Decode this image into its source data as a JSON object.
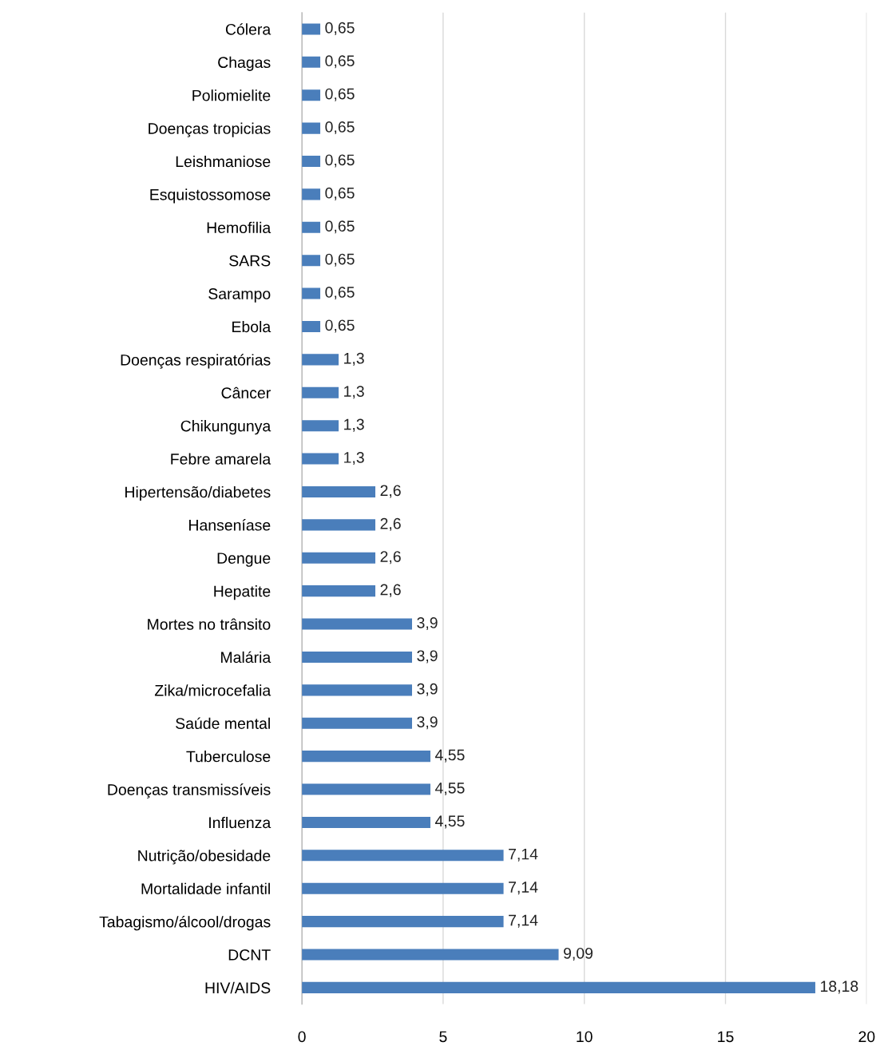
{
  "chart_data": {
    "type": "bar",
    "orientation": "horizontal",
    "categories": [
      "Cólera",
      "Chagas",
      "Poliomielite",
      "Doenças tropicias",
      "Leishmaniose",
      "Esquistossomose",
      "Hemofilia",
      "SARS",
      "Sarampo",
      "Ebola",
      "Doenças respiratórias",
      "Câncer",
      "Chikungunya",
      "Febre amarela",
      "Hipertensão/diabetes",
      "Hanseníase",
      "Dengue",
      "Hepatite",
      "Mortes no trânsito",
      "Malária",
      "Zika/microcefalia",
      "Saúde mental",
      "Tuberculose",
      "Doenças transmissíveis",
      "Influenza",
      "Nutrição/obesidade",
      "Mortalidade infantil",
      "Tabagismo/álcool/drogas",
      "DCNT",
      "HIV/AIDS"
    ],
    "values": [
      0.65,
      0.65,
      0.65,
      0.65,
      0.65,
      0.65,
      0.65,
      0.65,
      0.65,
      0.65,
      1.3,
      1.3,
      1.3,
      1.3,
      2.6,
      2.6,
      2.6,
      2.6,
      3.9,
      3.9,
      3.9,
      3.9,
      4.55,
      4.55,
      4.55,
      7.14,
      7.14,
      7.14,
      9.09,
      18.18
    ],
    "value_labels": [
      "0,65",
      "0,65",
      "0,65",
      "0,65",
      "0,65",
      "0,65",
      "0,65",
      "0,65",
      "0,65",
      "0,65",
      "1,3",
      "1,3",
      "1,3",
      "1,3",
      "2,6",
      "2,6",
      "2,6",
      "2,6",
      "3,9",
      "3,9",
      "3,9",
      "3,9",
      "4,55",
      "4,55",
      "4,55",
      "7,14",
      "7,14",
      "7,14",
      "9,09",
      "18,18"
    ],
    "color": "#4a7ebb",
    "xlim": [
      0,
      20
    ],
    "xticks": [
      0,
      5,
      10,
      15,
      20
    ],
    "grid": "x",
    "legend": false
  }
}
